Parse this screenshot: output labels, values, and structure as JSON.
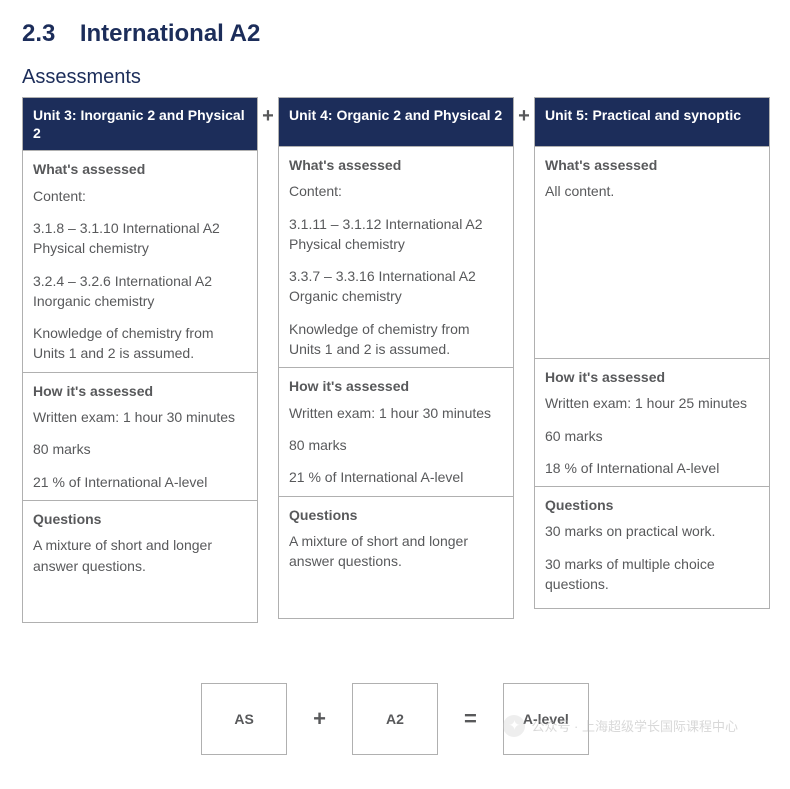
{
  "heading": {
    "number": "2.3",
    "title": "International A2"
  },
  "subtitle": "Assessments",
  "plus": "+",
  "colors": {
    "heading": "#1c2d5a",
    "header_bg": "#1c2d5a",
    "header_text": "#ffffff",
    "border": "#b0b0b0",
    "body_text": "#58595b",
    "background": "#ffffff"
  },
  "units": [
    {
      "title": "Unit 3: Inorganic 2 and Physical 2",
      "assessed": {
        "heading": "What's assessed",
        "lines": [
          "Content:",
          "3.1.8 – 3.1.10 International A2 Physical chemistry",
          "3.2.4 – 3.2.6 International A2 Inorganic chemistry",
          "Knowledge of chemistry from Units 1 and 2 is assumed."
        ]
      },
      "how": {
        "heading": "How it's assessed",
        "lines": [
          "Written exam: 1 hour 30 minutes",
          "80 marks",
          "21 % of International A-level"
        ]
      },
      "questions": {
        "heading": "Questions",
        "lines": [
          "A mixture of short and longer answer questions."
        ]
      }
    },
    {
      "title": "Unit 4: Organic 2 and Physical 2",
      "assessed": {
        "heading": "What's assessed",
        "lines": [
          "Content:",
          "3.1.11 – 3.1.12 International A2 Physical chemistry",
          "3.3.7 – 3.3.16 International A2 Organic chemistry",
          "Knowledge of chemistry from Units 1 and 2 is assumed."
        ]
      },
      "how": {
        "heading": "How it's assessed",
        "lines": [
          "Written exam: 1 hour 30 minutes",
          "80 marks",
          "21 % of International A-level"
        ]
      },
      "questions": {
        "heading": "Questions",
        "lines": [
          "A mixture of short and longer answer questions."
        ]
      }
    },
    {
      "title": "Unit 5: Practical and synoptic",
      "assessed": {
        "heading": "What's assessed",
        "lines": [
          "All content."
        ]
      },
      "how": {
        "heading": "How it's assessed",
        "lines": [
          "Written exam: 1 hour 25 minutes",
          "60 marks",
          "18 % of International A-level"
        ]
      },
      "questions": {
        "heading": "Questions",
        "lines": [
          "30 marks on practical work.",
          "30 marks of multiple choice questions."
        ]
      }
    }
  ],
  "equation": {
    "a": "AS",
    "op1": "+",
    "b": "A2",
    "op2": "=",
    "c": "A-level"
  },
  "watermark": {
    "icon": "✦",
    "text": "公众号 · 上海超级学长国际课程中心"
  }
}
